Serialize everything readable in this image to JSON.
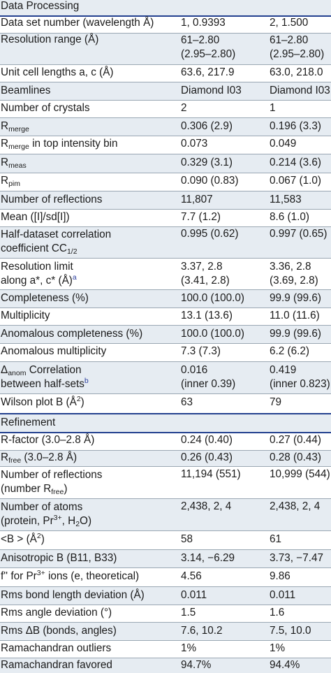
{
  "sections": {
    "processing": "Data Processing",
    "refinement": "Refinement"
  },
  "rows": {
    "dataset": {
      "label": "Data set number (wavelength Å)",
      "v1": "1, 0.9393",
      "v2": "2, 1.500"
    },
    "resolution_range": {
      "label": "Resolution range (Å)",
      "v1_a": "61–2.80",
      "v1_b": "(2.95–2.80)",
      "v2_a": "61–2.80",
      "v2_b": "(2.95–2.80)"
    },
    "unit_cell": {
      "label": "Unit cell lengths a, c (Å)",
      "v1": "63.6, 217.9",
      "v2": "63.0, 218.0"
    },
    "beamlines": {
      "label": "Beamlines",
      "v1": "Diamond I03",
      "v2": "Diamond I03"
    },
    "crystals": {
      "label": "Number of crystals",
      "v1": "2",
      "v2": "1"
    },
    "rmerge": {
      "label": "R",
      "sub": "merge",
      "v1": "0.306 (2.9)",
      "v2": "0.196 (3.3)"
    },
    "rmerge_top": {
      "label": "R",
      "sub": "merge",
      "label_rest": " in top intensity bin",
      "v1": "0.073",
      "v2": "0.049"
    },
    "rmeas": {
      "label": "R",
      "sub": "meas",
      "v1": "0.329 (3.1)",
      "v2": "0.214 (3.6)"
    },
    "rpim": {
      "label": "R",
      "sub": "pim",
      "v1": "0.090 (0.83)",
      "v2": "0.067 (1.0)"
    },
    "num_reflections": {
      "label": "Number of reflections",
      "v1": "11,807",
      "v2": "11,583"
    },
    "mean_i": {
      "label": "Mean ([I]/sd[I])",
      "v1": "7.7 (1.2)",
      "v2": "8.6 (1.0)"
    },
    "cc_half": {
      "label_a": "Half-dataset correlation",
      "label_b": "coefficient CC",
      "sub": "1/2",
      "v1": "0.995 (0.62)",
      "v2": "0.997 (0.65)"
    },
    "res_limit": {
      "label_a": "Resolution limit",
      "label_b": "along a*, c* (Å)",
      "sup": "a",
      "v1_a": "3.37, 2.8",
      "v1_b": "(3.41, 2.8)",
      "v2_a": "3.36, 2.8",
      "v2_b": "(3.69, 2.8)"
    },
    "completeness": {
      "label": "Completeness (%)",
      "v1": "100.0 (100.0)",
      "v2": "99.9 (99.6)"
    },
    "multiplicity": {
      "label": "Multiplicity",
      "v1": "13.1 (13.6)",
      "v2": "11.0 (11.6)"
    },
    "anom_completeness": {
      "label": "Anomalous completeness (%)",
      "v1": "100.0 (100.0)",
      "v2": "99.9 (99.6)"
    },
    "anom_multiplicity": {
      "label": "Anomalous multiplicity",
      "v1": "7.3 (7.3)",
      "v2": "6.2 (6.2)"
    },
    "anom_corr": {
      "label_a_sym": "Δ",
      "label_a_sub": "anom",
      "label_a": " Correlation",
      "label_b": "between half-sets",
      "sup": "b",
      "v1_a": "0.016",
      "v1_b": "(inner 0.39)",
      "v2_a": "0.419",
      "v2_b": "(inner 0.823)"
    },
    "wilson": {
      "label": "Wilson plot B (Å",
      "sup": "2",
      "label_end": ")",
      "v1": "63",
      "v2": "79"
    },
    "rfactor": {
      "label": "R-factor (3.0–2.8 Å)",
      "v1": "0.24 (0.40)",
      "v2": "0.27 (0.44)"
    },
    "rfree": {
      "label": "R",
      "sub": "free",
      "label_rest": " (3.0–2.8 Å)",
      "v1": "0.26 (0.43)",
      "v2": "0.28 (0.43)"
    },
    "ref_reflections": {
      "label_a": "Number of reflections",
      "label_b": "(number R",
      "sub": "free",
      "label_b_end": ")",
      "v1": "11,194 (551)",
      "v2": "10,999 (544)"
    },
    "atoms": {
      "label_a": "Number of atoms",
      "label_b": "(protein, Pr",
      "sup": "3+",
      "label_b_mid": ", H",
      "sub": "2",
      "label_b_end": "O)",
      "v1": "2,438, 2, 4",
      "v2": "2,438, 2, 4"
    },
    "bfactor": {
      "label": "<B > (Å",
      "sup": "2",
      "label_end": ")",
      "v1": "58",
      "v2": "61"
    },
    "aniso": {
      "label": "Anisotropic B (B11, B33)",
      "v1": "3.14, −6.29",
      "v2": "3.73, −7.47"
    },
    "fpp": {
      "label": "f'' for Pr",
      "sup": "3+",
      "label_end": " ions (e, theoretical)",
      "v1": "4.56",
      "v2": "9.86"
    },
    "rms_bond": {
      "label": "Rms bond length deviation (Å)",
      "v1": "0.011",
      "v2": "0.011"
    },
    "rms_angle": {
      "label": "Rms angle deviation (°)",
      "v1": "1.5",
      "v2": "1.6"
    },
    "rms_db": {
      "label": "Rms ΔB (bonds, angles)",
      "v1": "7.6, 10.2",
      "v2": "7.5, 10.0"
    },
    "rama_out": {
      "label": "Ramachandran outliers",
      "v1": "1%",
      "v2": "1%"
    },
    "rama_fav": {
      "label": "Ramachandran favored",
      "v1": "94.7%",
      "v2": "94.4%"
    }
  }
}
